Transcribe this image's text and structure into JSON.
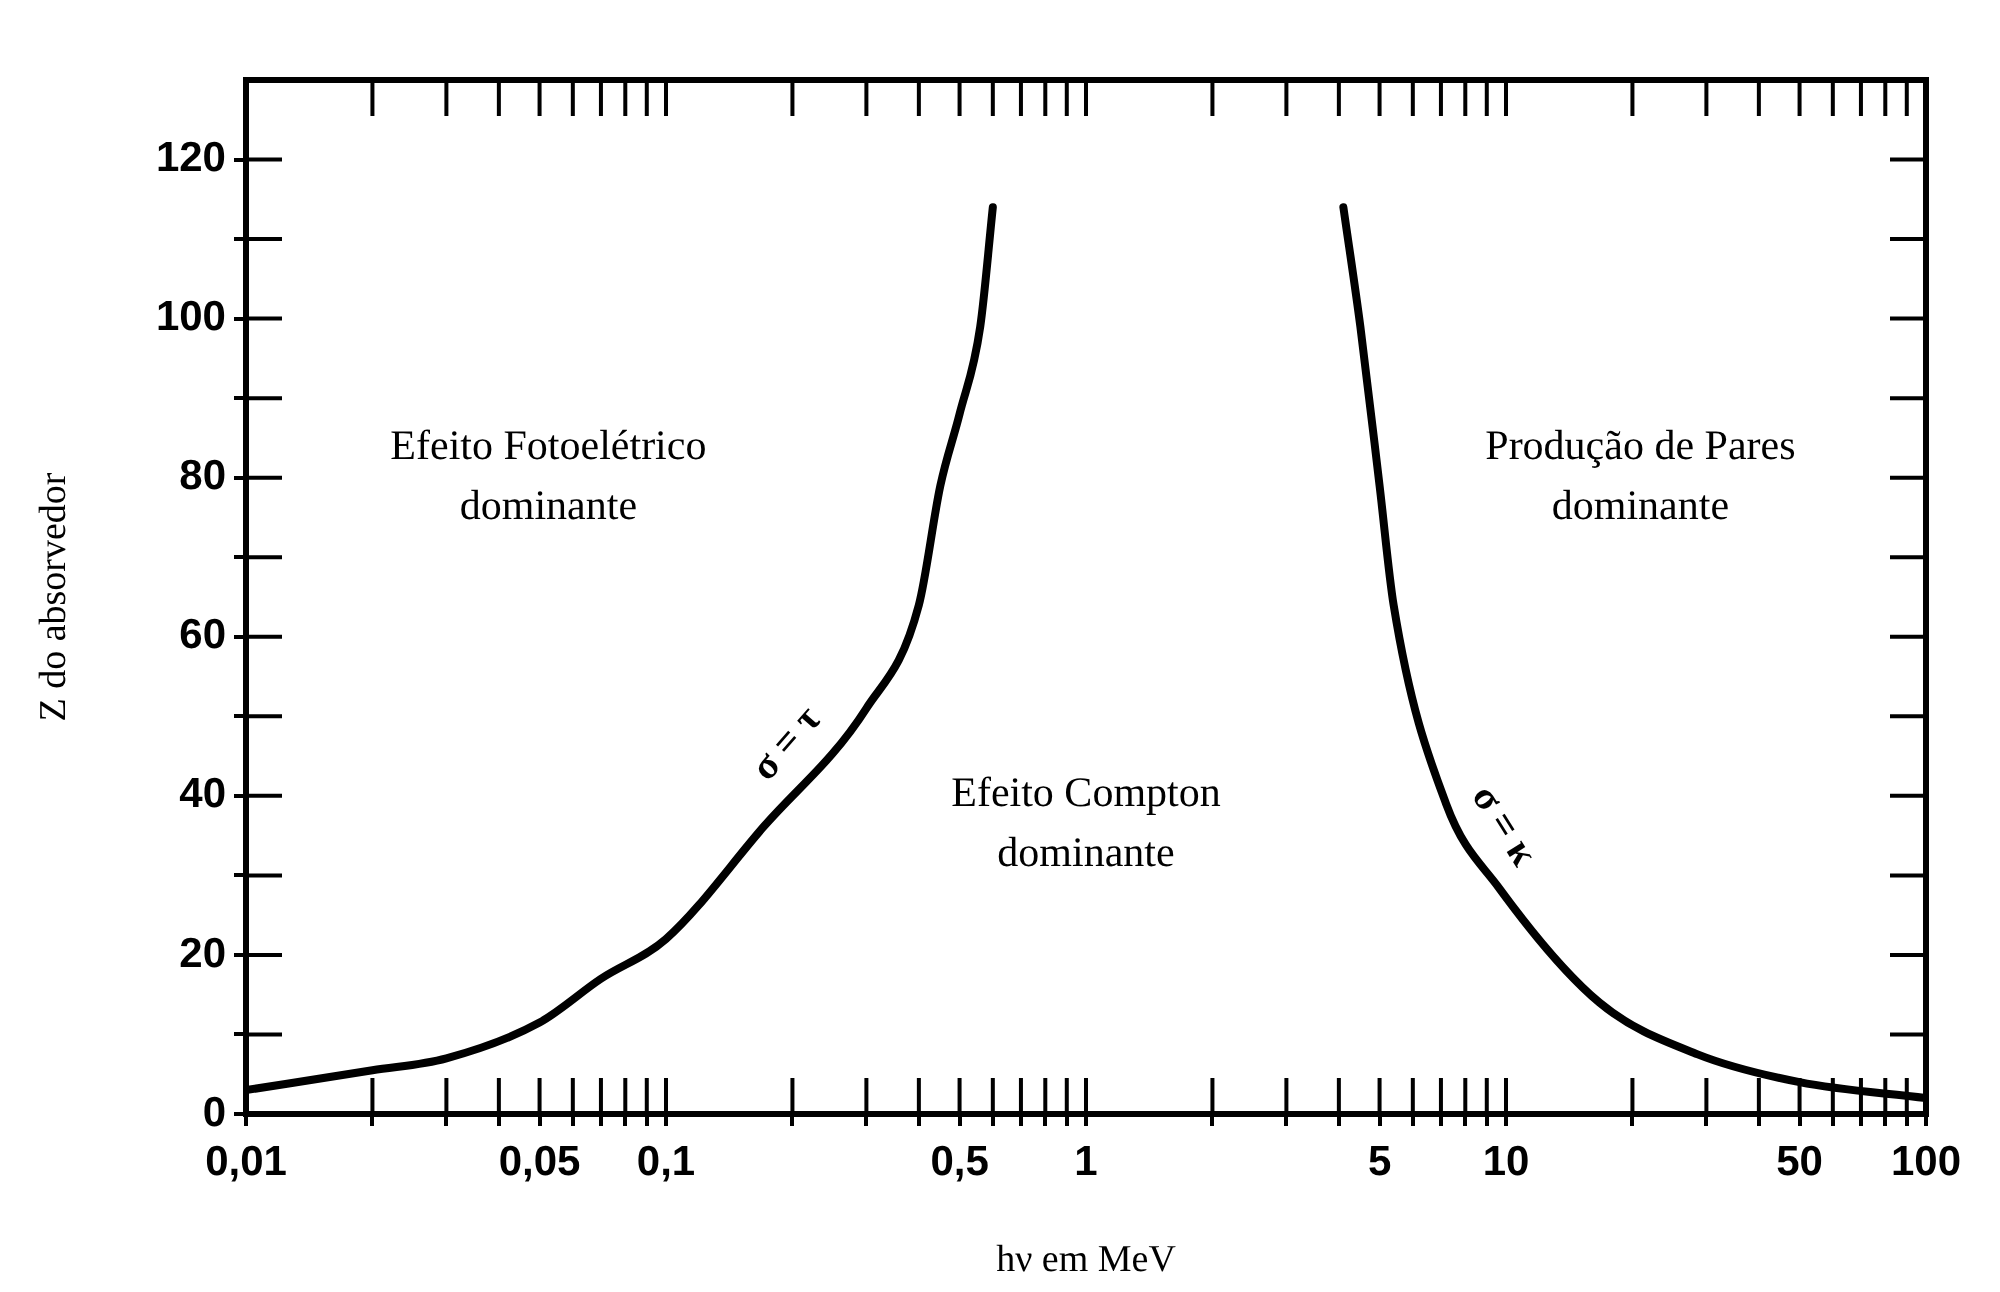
{
  "chart_data": {
    "type": "line",
    "xlabel": "hν em MeV",
    "ylabel": "Z do absorvedor",
    "log": "x",
    "xlim": [
      0.01,
      100
    ],
    "ylim": [
      0,
      130
    ],
    "xticks": [
      {
        "value": 0.01,
        "label": "0,01"
      },
      {
        "value": 0.02,
        "label": null
      },
      {
        "value": 0.03,
        "label": null
      },
      {
        "value": 0.04,
        "label": null
      },
      {
        "value": 0.05,
        "label": "0,05"
      },
      {
        "value": 0.06,
        "label": null
      },
      {
        "value": 0.07,
        "label": null
      },
      {
        "value": 0.08,
        "label": null
      },
      {
        "value": 0.09,
        "label": null
      },
      {
        "value": 0.1,
        "label": "0,1"
      },
      {
        "value": 0.2,
        "label": null
      },
      {
        "value": 0.3,
        "label": null
      },
      {
        "value": 0.4,
        "label": null
      },
      {
        "value": 0.5,
        "label": "0,5"
      },
      {
        "value": 0.6,
        "label": null
      },
      {
        "value": 0.7,
        "label": null
      },
      {
        "value": 0.8,
        "label": null
      },
      {
        "value": 0.9,
        "label": null
      },
      1,
      {
        "value": 2,
        "label": null
      },
      {
        "value": 3,
        "label": null
      },
      {
        "value": 4,
        "label": null
      },
      5,
      {
        "value": 6,
        "label": null
      },
      {
        "value": 7,
        "label": null
      },
      {
        "value": 8,
        "label": null
      },
      {
        "value": 9,
        "label": null
      },
      10,
      {
        "value": 20,
        "label": null
      },
      {
        "value": 30,
        "label": null
      },
      {
        "value": 40,
        "label": null
      },
      50,
      {
        "value": 60,
        "label": null
      },
      {
        "value": 70,
        "label": null
      },
      {
        "value": 80,
        "label": null
      },
      {
        "value": 90,
        "label": null
      },
      100
    ],
    "yticks": [
      0,
      {
        "value": 10,
        "label": null
      },
      20,
      {
        "value": 30,
        "label": null
      },
      40,
      {
        "value": 50,
        "label": null
      },
      60,
      {
        "value": 70,
        "label": null
      },
      80,
      {
        "value": 90,
        "label": null
      },
      100,
      {
        "value": 110,
        "label": null
      },
      120
    ],
    "grid": false,
    "legend": false,
    "marker": "none",
    "series": [
      {
        "name": "σ = τ",
        "color": "#000000",
        "x": [
          0.01,
          0.02,
          0.03,
          0.05,
          0.07,
          0.1,
          0.17,
          0.3,
          0.4,
          0.45,
          0.5,
          0.56,
          0.6
        ],
        "values": [
          3,
          5.5,
          7,
          11.5,
          17,
          22,
          36,
          51,
          64,
          79,
          88,
          99,
          114
        ]
      },
      {
        "name": "σ = κ",
        "color": "#000000",
        "x": [
          4.1,
          4.5,
          5,
          5.4,
          7.2,
          9.6,
          16.7,
          28.6,
          50,
          100
        ],
        "values": [
          114,
          99,
          79,
          64,
          39,
          28.5,
          14,
          7.5,
          4,
          2
        ]
      }
    ],
    "annotations": [
      "Efeito Fotoelétrico\ndominante",
      "Efeito Compton\ndominante",
      "Produção de Pares\ndominante"
    ]
  }
}
